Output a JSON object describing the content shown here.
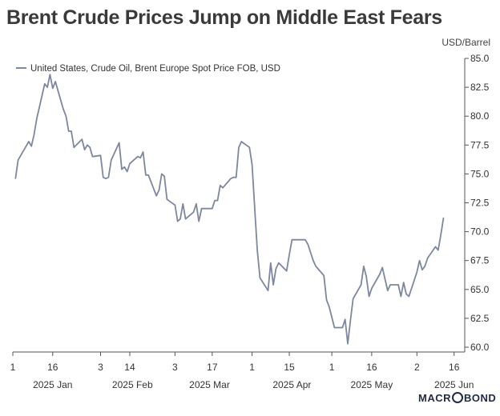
{
  "title": "Brent Crude Prices Jump on Middle East Fears",
  "unit": "USD/Barrel",
  "brand": {
    "pre": "MACR",
    "post": "BOND"
  },
  "colors": {
    "line": "#7d879f",
    "axis": "#555555",
    "text": "#333333"
  },
  "chart_data": {
    "type": "line",
    "title": "Brent Crude Prices Jump on Middle East Fears",
    "ylabel": "USD/Barrel",
    "ylim": [
      60.0,
      85.0
    ],
    "xlim": [
      "2025-01-01",
      "2025-06-20"
    ],
    "y_ticks": [
      "85.0",
      "82.5",
      "80.0",
      "77.5",
      "75.0",
      "72.5",
      "70.0",
      "67.5",
      "65.0",
      "62.5",
      "60.0"
    ],
    "x_ticks": [
      {
        "date": "2025-01-01",
        "label": "1"
      },
      {
        "date": "2025-01-16",
        "label": "16"
      },
      {
        "date": "2025-02-03",
        "label": "3"
      },
      {
        "date": "2025-02-14",
        "label": "14"
      },
      {
        "date": "2025-03-03",
        "label": "3"
      },
      {
        "date": "2025-03-17",
        "label": "17"
      },
      {
        "date": "2025-04-01",
        "label": "1"
      },
      {
        "date": "2025-04-15",
        "label": "15"
      },
      {
        "date": "2025-05-01",
        "label": "1"
      },
      {
        "date": "2025-05-16",
        "label": "16"
      },
      {
        "date": "2025-06-02",
        "label": "2"
      },
      {
        "date": "2025-06-16",
        "label": "16"
      }
    ],
    "month_labels": [
      {
        "date": "2025-01-16",
        "label": "2025 Jan"
      },
      {
        "date": "2025-02-15",
        "label": "2025 Feb"
      },
      {
        "date": "2025-03-16",
        "label": "2025 Mar"
      },
      {
        "date": "2025-04-16",
        "label": "2025 Apr"
      },
      {
        "date": "2025-05-16",
        "label": "2025 May"
      },
      {
        "date": "2025-06-16",
        "label": "2025 Jun"
      }
    ],
    "legend": {
      "position": "top-left"
    },
    "grid": false,
    "series": [
      {
        "name": "United States, Crude Oil, Brent Europe Spot Price FOB, USD",
        "points": [
          [
            "2025-01-02",
            74.6
          ],
          [
            "2025-01-03",
            76.2
          ],
          [
            "2025-01-06",
            77.4
          ],
          [
            "2025-01-07",
            77.8
          ],
          [
            "2025-01-08",
            77.4
          ],
          [
            "2025-01-09",
            78.4
          ],
          [
            "2025-01-10",
            79.8
          ],
          [
            "2025-01-13",
            82.8
          ],
          [
            "2025-01-14",
            82.5
          ],
          [
            "2025-01-15",
            83.6
          ],
          [
            "2025-01-16",
            82.4
          ],
          [
            "2025-01-17",
            83.0
          ],
          [
            "2025-01-20",
            80.6
          ],
          [
            "2025-01-21",
            80.0
          ],
          [
            "2025-01-22",
            78.7
          ],
          [
            "2025-01-23",
            78.7
          ],
          [
            "2025-01-24",
            77.3
          ],
          [
            "2025-01-27",
            78.0
          ],
          [
            "2025-01-28",
            77.1
          ],
          [
            "2025-01-29",
            77.5
          ],
          [
            "2025-01-30",
            77.3
          ],
          [
            "2025-01-31",
            76.5
          ],
          [
            "2025-02-03",
            76.6
          ],
          [
            "2025-02-04",
            74.7
          ],
          [
            "2025-02-05",
            74.6
          ],
          [
            "2025-02-06",
            74.7
          ],
          [
            "2025-02-07",
            76.2
          ],
          [
            "2025-02-10",
            77.7
          ],
          [
            "2025-02-11",
            75.4
          ],
          [
            "2025-02-12",
            75.6
          ],
          [
            "2025-02-13",
            75.2
          ],
          [
            "2025-02-14",
            75.9
          ],
          [
            "2025-02-17",
            76.5
          ],
          [
            "2025-02-18",
            76.4
          ],
          [
            "2025-02-19",
            76.9
          ],
          [
            "2025-02-20",
            74.9
          ],
          [
            "2025-02-21",
            74.9
          ],
          [
            "2025-02-24",
            73.1
          ],
          [
            "2025-02-25",
            73.6
          ],
          [
            "2025-02-26",
            75.0
          ],
          [
            "2025-02-27",
            74.8
          ],
          [
            "2025-02-28",
            72.8
          ],
          [
            "2025-03-03",
            72.3
          ],
          [
            "2025-03-04",
            70.9
          ],
          [
            "2025-03-05",
            71.1
          ],
          [
            "2025-03-06",
            72.4
          ],
          [
            "2025-03-07",
            71.1
          ],
          [
            "2025-03-10",
            71.7
          ],
          [
            "2025-03-11",
            72.4
          ],
          [
            "2025-03-12",
            70.9
          ],
          [
            "2025-03-13",
            72.0
          ],
          [
            "2025-03-14",
            72.0
          ],
          [
            "2025-03-17",
            72.0
          ],
          [
            "2025-03-18",
            72.7
          ],
          [
            "2025-03-19",
            72.7
          ],
          [
            "2025-03-20",
            74.0
          ],
          [
            "2025-03-21",
            73.8
          ],
          [
            "2025-03-24",
            74.6
          ],
          [
            "2025-03-25",
            74.7
          ],
          [
            "2025-03-26",
            74.7
          ],
          [
            "2025-03-27",
            77.3
          ],
          [
            "2025-03-28",
            77.8
          ],
          [
            "2025-03-31",
            77.3
          ],
          [
            "2025-04-01",
            75.8
          ],
          [
            "2025-04-02",
            72.0
          ],
          [
            "2025-04-03",
            68.3
          ],
          [
            "2025-04-04",
            66.0
          ],
          [
            "2025-04-07",
            64.9
          ],
          [
            "2025-04-08",
            67.3
          ],
          [
            "2025-04-09",
            65.4
          ],
          [
            "2025-04-10",
            66.8
          ],
          [
            "2025-04-11",
            67.3
          ],
          [
            "2025-04-14",
            66.6
          ],
          [
            "2025-04-15",
            68.0
          ],
          [
            "2025-04-16",
            69.3
          ],
          [
            "2025-04-17",
            69.3
          ],
          [
            "2025-04-21",
            69.3
          ],
          [
            "2025-04-22",
            68.9
          ],
          [
            "2025-04-23",
            68.2
          ],
          [
            "2025-04-24",
            67.5
          ],
          [
            "2025-04-25",
            67.0
          ],
          [
            "2025-04-28",
            66.2
          ],
          [
            "2025-04-29",
            64.1
          ],
          [
            "2025-04-30",
            63.5
          ],
          [
            "2025-05-01",
            62.6
          ],
          [
            "2025-05-02",
            61.7
          ],
          [
            "2025-05-05",
            61.7
          ],
          [
            "2025-05-06",
            62.4
          ],
          [
            "2025-05-07",
            60.3
          ],
          [
            "2025-05-08",
            62.3
          ],
          [
            "2025-05-09",
            64.2
          ],
          [
            "2025-05-12",
            65.4
          ],
          [
            "2025-05-13",
            67.0
          ],
          [
            "2025-05-14",
            66.1
          ],
          [
            "2025-05-15",
            64.4
          ],
          [
            "2025-05-16",
            65.1
          ],
          [
            "2025-05-19",
            66.3
          ],
          [
            "2025-05-20",
            66.9
          ],
          [
            "2025-05-21",
            65.9
          ],
          [
            "2025-05-22",
            64.9
          ],
          [
            "2025-05-23",
            65.4
          ],
          [
            "2025-05-26",
            65.4
          ],
          [
            "2025-05-27",
            64.4
          ],
          [
            "2025-05-28",
            65.6
          ],
          [
            "2025-05-29",
            64.6
          ],
          [
            "2025-05-30",
            64.4
          ],
          [
            "2025-06-02",
            66.5
          ],
          [
            "2025-06-03",
            67.5
          ],
          [
            "2025-06-04",
            66.7
          ],
          [
            "2025-06-05",
            67.0
          ],
          [
            "2025-06-06",
            67.7
          ],
          [
            "2025-06-09",
            68.7
          ],
          [
            "2025-06-10",
            68.4
          ],
          [
            "2025-06-11",
            69.7
          ],
          [
            "2025-06-12",
            71.2
          ]
        ]
      }
    ]
  }
}
